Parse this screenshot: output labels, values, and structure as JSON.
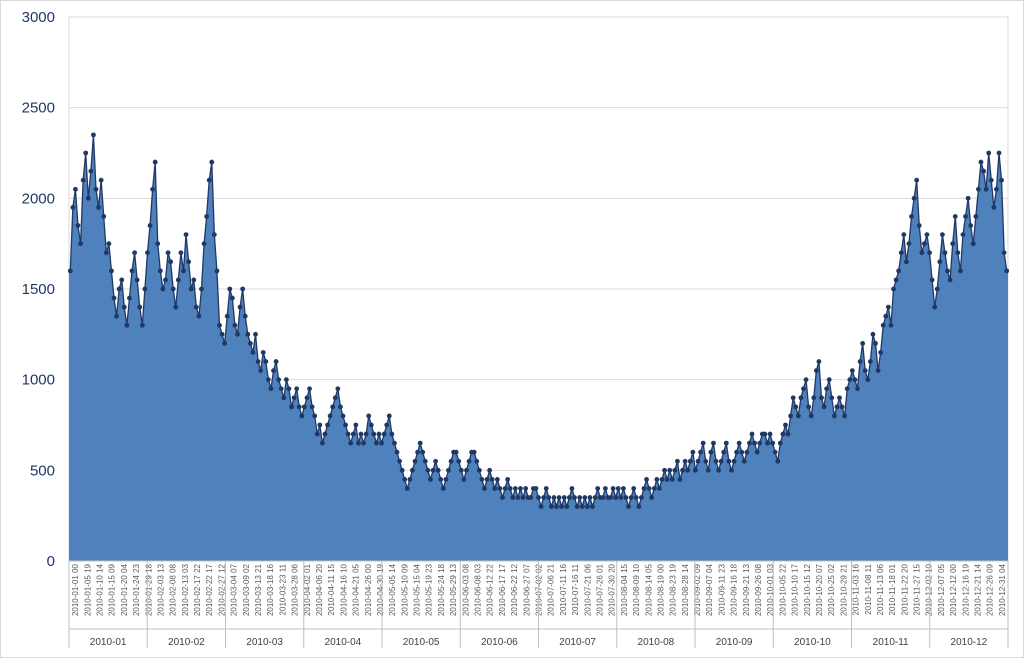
{
  "chart_data": {
    "type": "area",
    "title": "",
    "xlabel": "",
    "ylabel": "",
    "ylim": [
      0,
      3000
    ],
    "yticks": [
      0,
      500,
      1000,
      1500,
      2000,
      2500,
      3000
    ],
    "grid": true,
    "legend": "none",
    "colors": {
      "fill": "#4f81bd",
      "line": "#1f3864",
      "marker": "#1f3864",
      "grid": "#d9d9d9",
      "axis_text": "#1f3864"
    },
    "months": [
      "2010-01",
      "2010-02",
      "2010-03",
      "2010-04",
      "2010-05",
      "2010-06",
      "2010-07",
      "2010-08",
      "2010-09",
      "2010-10",
      "2010-11",
      "2010-12"
    ],
    "series": [
      {
        "sampling": "daily",
        "values": [
          1600,
          1950,
          2050,
          1850,
          1750,
          2100,
          2250,
          2000,
          2150,
          2350,
          2050,
          1950,
          2100,
          1900,
          1700,
          1750,
          1600,
          1450,
          1350,
          1500,
          1550,
          1400,
          1300,
          1450,
          1600,
          1700,
          1550,
          1400,
          1300,
          1500,
          1700,
          1850,
          2050,
          2200,
          1750,
          1600,
          1500,
          1550,
          1700,
          1650,
          1500,
          1400,
          1550,
          1700,
          1600,
          1800,
          1650,
          1500,
          1550,
          1400,
          1350,
          1500,
          1750,
          1900,
          2100,
          2200,
          1800,
          1600,
          1300,
          1250,
          1200,
          1350,
          1500,
          1450,
          1300,
          1250,
          1400,
          1500,
          1350,
          1250,
          1200,
          1150,
          1250,
          1100,
          1050,
          1150,
          1100,
          1000,
          950,
          1050,
          1100,
          1000,
          950,
          900,
          1000,
          950,
          850,
          900,
          950,
          850,
          800,
          850,
          900,
          950,
          850,
          800,
          700,
          750,
          650,
          700,
          750,
          800,
          850,
          900,
          950,
          850,
          800,
          750,
          700,
          650,
          700,
          750,
          650,
          700,
          650,
          700,
          800,
          750,
          700,
          650,
          700,
          650,
          700,
          750,
          800,
          700,
          650,
          600,
          550,
          500,
          450,
          400,
          450,
          500,
          550,
          600,
          650,
          600,
          550,
          500,
          450,
          500,
          550,
          500,
          450,
          400,
          450,
          500,
          550,
          600,
          600,
          550,
          500,
          450,
          500,
          550,
          600,
          600,
          550,
          500,
          450,
          400,
          450,
          500,
          450,
          400,
          450,
          400,
          350,
          400,
          450,
          400,
          350,
          400,
          350,
          400,
          350,
          400,
          350,
          350,
          400,
          400,
          350,
          300,
          350,
          400,
          350,
          300,
          350,
          300,
          350,
          300,
          350,
          300,
          350,
          400,
          350,
          300,
          350,
          300,
          350,
          300,
          350,
          300,
          350,
          400,
          350,
          350,
          400,
          350,
          350,
          400,
          350,
          400,
          350,
          400,
          350,
          300,
          350,
          400,
          350,
          300,
          350,
          400,
          450,
          400,
          350,
          400,
          450,
          400,
          450,
          500,
          450,
          500,
          450,
          500,
          550,
          450,
          500,
          550,
          500,
          550,
          600,
          500,
          550,
          600,
          650,
          550,
          500,
          600,
          650,
          550,
          500,
          550,
          600,
          650,
          550,
          500,
          550,
          600,
          650,
          600,
          550,
          600,
          650,
          700,
          650,
          600,
          650,
          700,
          700,
          650,
          700,
          650,
          600,
          550,
          650,
          700,
          750,
          700,
          800,
          900,
          850,
          800,
          900,
          950,
          1000,
          850,
          800,
          900,
          1050,
          1100,
          900,
          850,
          950,
          1000,
          900,
          800,
          850,
          900,
          850,
          800,
          950,
          1000,
          1050,
          1000,
          950,
          1100,
          1200,
          1050,
          1000,
          1100,
          1250,
          1200,
          1050,
          1150,
          1300,
          1350,
          1400,
          1300,
          1500,
          1550,
          1600,
          1700,
          1800,
          1650,
          1750,
          1900,
          2000,
          2100,
          1850,
          1700,
          1750,
          1800,
          1700,
          1550,
          1400,
          1500,
          1650,
          1800,
          1700,
          1600,
          1550,
          1750,
          1900,
          1700,
          1600,
          1800,
          1900,
          2000,
          1850,
          1750,
          1900,
          2050,
          2200,
          2150,
          2050,
          2250,
          2100,
          1950,
          2050,
          2250,
          2100,
          1700,
          1600
        ]
      }
    ],
    "x_tick_labels": [
      "2010-01-01 00",
      "2010-01-05 19",
      "2010-01-10 14",
      "2010-01-15 09",
      "2010-01-20 04",
      "2010-01-24 23",
      "2010-01-29 18",
      "2010-02-03 13",
      "2010-02-08 08",
      "2010-02-13 03",
      "2010-02-17 22",
      "2010-02-22 17",
      "2010-02-27 12",
      "2010-03-04 07",
      "2010-03-09 02",
      "2010-03-13 21",
      "2010-03-18 16",
      "2010-03-23 11",
      "2010-03-28 06",
      "2010-04-02 01",
      "2010-04-06 20",
      "2010-04-11 15",
      "2010-04-16 10",
      "2010-04-21 05",
      "2010-04-26 00",
      "2010-04-30 19",
      "2010-05-05 14",
      "2010-05-10 09",
      "2010-05-15 04",
      "2010-05-19 23",
      "2010-05-24 18",
      "2010-05-29 13",
      "2010-06-03 08",
      "2010-06-08 03",
      "2010-06-12 22",
      "2010-06-17 17",
      "2010-06-22 12",
      "2010-06-27 07",
      "2010-07-02 02",
      "2010-07-06 21",
      "2010-07-11 16",
      "2010-07-16 11",
      "2010-07-21 06",
      "2010-07-26 01",
      "2010-07-30 20",
      "2010-08-04 15",
      "2010-08-09 10",
      "2010-08-14 05",
      "2010-08-19 00",
      "2010-08-23 19",
      "2010-08-28 14",
      "2010-09-02 09",
      "2010-09-07 04",
      "2010-09-11 23",
      "2010-09-16 18",
      "2010-09-21 13",
      "2010-09-26 08",
      "2010-10-01 03",
      "2010-10-05 22",
      "2010-10-10 17",
      "2010-10-15 12",
      "2010-10-20 07",
      "2010-10-25 02",
      "2010-10-29 21",
      "2010-11-03 16",
      "2010-11-08 11",
      "2010-11-13 06",
      "2010-11-18 01",
      "2010-11-22 20",
      "2010-11-27 15",
      "2010-12-02 10",
      "2010-12-07 05",
      "2010-12-12 00",
      "2010-12-16 19",
      "2010-12-21 14",
      "2010-12-26 09",
      "2010-12-31 04"
    ]
  }
}
